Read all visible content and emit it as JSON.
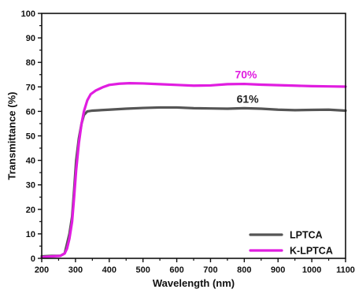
{
  "chart_data": {
    "type": "line",
    "xlabel": "Wavelength (nm)",
    "ylabel": "Transmittance (%)",
    "xlim": [
      200,
      1100
    ],
    "ylim": [
      0,
      100
    ],
    "xticks": [
      "200",
      "300",
      "400",
      "500",
      "600",
      "700",
      "800",
      "900",
      "1000",
      "1100"
    ],
    "yticks": [
      "0",
      "10",
      "20",
      "30",
      "40",
      "50",
      "60",
      "70",
      "80",
      "90",
      "100"
    ],
    "grid": false,
    "legend_position": "bottom-right",
    "series": [
      {
        "name": "LPTCA",
        "color": "#555555",
        "x": [
          200,
          230,
          255,
          268,
          275,
          282,
          290,
          296,
          302,
          310,
          318,
          325,
          335,
          350,
          400,
          450,
          500,
          550,
          600,
          650,
          700,
          750,
          800,
          850,
          900,
          950,
          1000,
          1050,
          1100
        ],
        "y": [
          0.8,
          1,
          1,
          2,
          6,
          10,
          17,
          28,
          40,
          49,
          55,
          58.5,
          60,
          60.3,
          60.7,
          61.1,
          61.4,
          61.6,
          61.6,
          61.3,
          61.2,
          61.1,
          61.3,
          61.1,
          60.7,
          60.5,
          60.6,
          60.7,
          60.3
        ]
      },
      {
        "name": "K-LPTCA",
        "color": "#e01de0",
        "x": [
          200,
          230,
          255,
          268,
          275,
          282,
          290,
          296,
          302,
          310,
          318,
          325,
          335,
          345,
          360,
          380,
          400,
          430,
          460,
          500,
          550,
          600,
          650,
          700,
          750,
          800,
          850,
          900,
          950,
          1000,
          1050,
          1100
        ],
        "y": [
          0.5,
          0.8,
          1,
          2,
          4,
          8,
          15,
          25,
          36,
          47,
          55,
          60,
          64.5,
          67,
          68.5,
          69.8,
          70.8,
          71.3,
          71.5,
          71.4,
          71.1,
          70.8,
          70.5,
          70.6,
          71.1,
          71.2,
          70.9,
          70.7,
          70.5,
          70.3,
          70.2,
          70.1
        ]
      }
    ],
    "annotations": [
      {
        "text": "70%",
        "x": 805,
        "y": 73.5,
        "color": "#e01de0"
      },
      {
        "text": "61%",
        "x": 810,
        "y": 63.5,
        "color": "#222222"
      }
    ]
  }
}
